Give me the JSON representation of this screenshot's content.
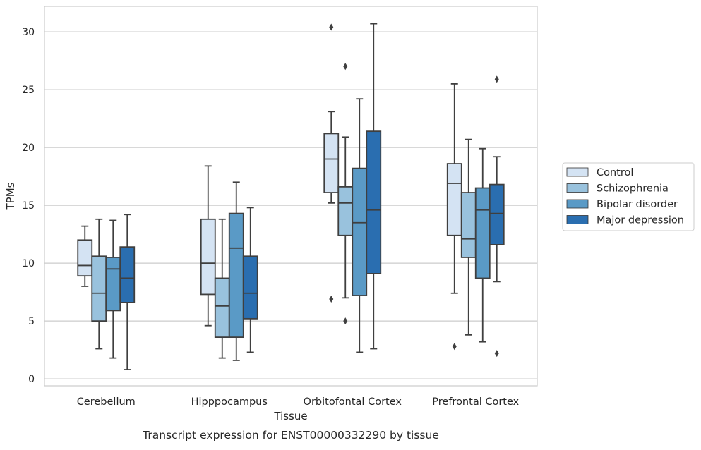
{
  "chart_data": {
    "type": "boxplot",
    "caption": "Transcript expression for ENST00000332290 by tissue",
    "xlabel": "Tissue",
    "ylabel": "TPMs",
    "ylim": [
      -0.6,
      32.2
    ],
    "yticks": [
      0,
      5,
      10,
      15,
      20,
      25,
      30
    ],
    "grid": "horizontal",
    "legend_position": "right",
    "categories": [
      "Cerebellum",
      "Hipppocampus",
      "Orbitofontal Cortex",
      "Prefrontal Cortex"
    ],
    "series": [
      {
        "name": "Control",
        "color": "#d4e3f3",
        "boxes": [
          {
            "whislo": 8.0,
            "q1": 8.9,
            "med": 9.8,
            "q3": 12.0,
            "whishi": 13.2,
            "fliers": []
          },
          {
            "whislo": 4.6,
            "q1": 7.3,
            "med": 10.0,
            "q3": 13.8,
            "whishi": 18.4,
            "fliers": []
          },
          {
            "whislo": 15.2,
            "q1": 16.1,
            "med": 19.0,
            "q3": 21.2,
            "whishi": 23.1,
            "fliers": [
              30.4,
              6.9
            ]
          },
          {
            "whislo": 7.4,
            "q1": 12.4,
            "med": 16.9,
            "q3": 18.6,
            "whishi": 25.5,
            "fliers": [
              2.8
            ]
          }
        ]
      },
      {
        "name": "Schizophrenia",
        "color": "#99c2dd",
        "boxes": [
          {
            "whislo": 2.6,
            "q1": 5.0,
            "med": 7.4,
            "q3": 10.6,
            "whishi": 13.8,
            "fliers": []
          },
          {
            "whislo": 1.8,
            "q1": 3.6,
            "med": 6.3,
            "q3": 8.7,
            "whishi": 13.8,
            "fliers": []
          },
          {
            "whislo": 7.0,
            "q1": 12.4,
            "med": 15.2,
            "q3": 16.6,
            "whishi": 20.9,
            "fliers": [
              27.0,
              5.0
            ]
          },
          {
            "whislo": 3.8,
            "q1": 10.5,
            "med": 12.1,
            "q3": 16.1,
            "whishi": 20.7,
            "fliers": []
          }
        ]
      },
      {
        "name": "Bipolar disorder",
        "color": "#5a9ac6",
        "boxes": [
          {
            "whislo": 1.8,
            "q1": 5.9,
            "med": 9.5,
            "q3": 10.5,
            "whishi": 13.7,
            "fliers": []
          },
          {
            "whislo": 1.6,
            "q1": 3.6,
            "med": 11.3,
            "q3": 14.3,
            "whishi": 17.0,
            "fliers": []
          },
          {
            "whislo": 2.3,
            "q1": 7.2,
            "med": 13.5,
            "q3": 18.2,
            "whishi": 24.2,
            "fliers": []
          },
          {
            "whislo": 3.2,
            "q1": 8.7,
            "med": 14.6,
            "q3": 16.5,
            "whishi": 19.9,
            "fliers": []
          }
        ]
      },
      {
        "name": "Major depression",
        "color": "#2a6eb0",
        "boxes": [
          {
            "whislo": 0.8,
            "q1": 6.6,
            "med": 8.7,
            "q3": 11.4,
            "whishi": 14.2,
            "fliers": []
          },
          {
            "whislo": 2.3,
            "q1": 5.2,
            "med": 7.4,
            "q3": 10.6,
            "whishi": 14.8,
            "fliers": []
          },
          {
            "whislo": 2.6,
            "q1": 9.1,
            "med": 14.6,
            "q3": 21.4,
            "whishi": 30.7,
            "fliers": []
          },
          {
            "whislo": 8.4,
            "q1": 11.6,
            "med": 14.3,
            "q3": 16.8,
            "whishi": 19.2,
            "fliers": [
              25.9,
              2.2
            ]
          }
        ]
      }
    ]
  }
}
